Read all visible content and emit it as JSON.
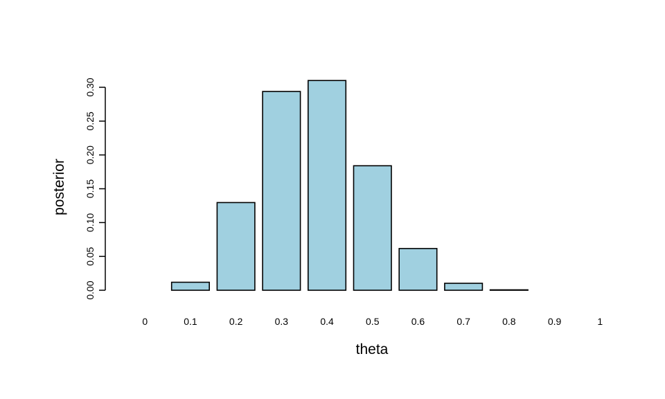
{
  "chart_data": {
    "type": "bar",
    "xlabel": "theta",
    "ylabel": "posterior",
    "categories": [
      "0",
      "0.1",
      "0.2",
      "0.3",
      "0.4",
      "0.5",
      "0.6",
      "0.7",
      "0.8",
      "0.9",
      "1"
    ],
    "values": [
      0.0,
      0.0118,
      0.1296,
      0.2938,
      0.31,
      0.184,
      0.0617,
      0.0103,
      0.0006,
      0.0,
      0.0
    ],
    "ylim": [
      0,
      0.3
    ],
    "yticks": [
      "0.00",
      "0.05",
      "0.10",
      "0.15",
      "0.20",
      "0.25",
      "0.30"
    ],
    "grid": false,
    "bar_fill": "#a0d0e0",
    "bar_stroke": "#000000"
  }
}
